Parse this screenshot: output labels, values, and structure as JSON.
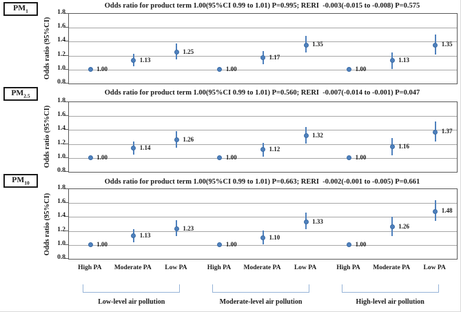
{
  "figure": {
    "y_axis_label": "Odds ratio (95%CI)",
    "y_ticks": [
      "1.8",
      "1.6",
      "1.4",
      "1.2",
      "1.0",
      "0.8"
    ],
    "ylim": [
      0.8,
      1.8
    ],
    "x_categories": [
      "High PA",
      "Moderate PA",
      "Low PA",
      "High PA",
      "Moderate PA",
      "Low PA",
      "High PA",
      "Moderate PA",
      "Low PA"
    ],
    "group_labels": [
      "Low-level air pollution",
      "Moderate-level air pollution",
      "High-level air pollution"
    ],
    "colors": {
      "marker": "#4f81bd",
      "marker_border": "#3a6ba5",
      "error_bar": "#4f81bd",
      "bracket": "#95b3d7",
      "gridline": "#a6a6a6",
      "axis": "#595959"
    }
  },
  "chart_data": [
    {
      "type": "scatter",
      "pm": {
        "base": "PM",
        "sub": "1"
      },
      "title": "Odds ratio for product term 1.00(95%CI 0.99 to 1.01) P=0.995; RERI  -0.003(-0.015 to -0.008) P=0.575",
      "ylabel": "Odds ratio (95%CI)",
      "ylim": [
        0.8,
        1.8
      ],
      "categories": [
        "High PA",
        "Moderate PA",
        "Low PA",
        "High PA",
        "Moderate PA",
        "Low PA",
        "High PA",
        "Moderate PA",
        "Low PA"
      ],
      "values": [
        1.0,
        1.13,
        1.25,
        1.0,
        1.17,
        1.35,
        1.0,
        1.13,
        1.35
      ],
      "ci_low": [
        1.0,
        1.05,
        1.15,
        1.0,
        1.08,
        1.24,
        1.0,
        1.01,
        1.22
      ],
      "ci_high": [
        1.0,
        1.23,
        1.37,
        1.0,
        1.27,
        1.48,
        1.0,
        1.25,
        1.5
      ],
      "labels": [
        "1.00",
        "1.13",
        "1.25",
        "1.00",
        "1.17",
        "1.35",
        "1.00",
        "1.13",
        "1.35"
      ]
    },
    {
      "type": "scatter",
      "pm": {
        "base": "PM",
        "sub": "2.5"
      },
      "title": "Odds ratio for product term 1.00(95%CI 0.99 to 1.01) P=0.560; RERI  -0.007(-0.014 to -0.001) P=0.047",
      "ylabel": "Odds ratio (95%CI)",
      "ylim": [
        0.8,
        1.8
      ],
      "categories": [
        "High PA",
        "Moderate PA",
        "Low PA",
        "High PA",
        "Moderate PA",
        "Low PA",
        "High PA",
        "Moderate PA",
        "Low PA"
      ],
      "values": [
        1.0,
        1.14,
        1.26,
        1.0,
        1.12,
        1.32,
        1.0,
        1.16,
        1.37
      ],
      "ci_low": [
        1.0,
        1.05,
        1.15,
        1.0,
        1.02,
        1.21,
        1.0,
        1.04,
        1.24
      ],
      "ci_high": [
        1.0,
        1.24,
        1.38,
        1.0,
        1.22,
        1.44,
        1.0,
        1.29,
        1.52
      ],
      "labels": [
        "1.00",
        "1.14",
        "1.26",
        "1.00",
        "1.12",
        "1.32",
        "1.00",
        "1.16",
        "1.37"
      ]
    },
    {
      "type": "scatter",
      "pm": {
        "base": "PM",
        "sub": "10"
      },
      "title": "Odds ratio for product term 1.00(95%CI 0.99 to 1.01) P=0.663; RERI  -0.002(-0.001 to -0.005) P=0.661",
      "ylabel": "Odds ratio (95%CI)",
      "ylim": [
        0.8,
        1.8
      ],
      "categories": [
        "High PA",
        "Moderate PA",
        "Low PA",
        "High PA",
        "Moderate PA",
        "Low PA",
        "High PA",
        "Moderate PA",
        "Low PA"
      ],
      "values": [
        1.0,
        1.13,
        1.23,
        1.0,
        1.1,
        1.33,
        1.0,
        1.26,
        1.48
      ],
      "ci_low": [
        1.0,
        1.04,
        1.13,
        1.0,
        1.01,
        1.22,
        1.0,
        1.13,
        1.34
      ],
      "ci_high": [
        1.0,
        1.23,
        1.35,
        1.0,
        1.21,
        1.46,
        1.0,
        1.4,
        1.64
      ],
      "labels": [
        "1.00",
        "1.13",
        "1.23",
        "1.00",
        "1.10",
        "1.33",
        "1.00",
        "1.26",
        "1.48"
      ]
    }
  ]
}
